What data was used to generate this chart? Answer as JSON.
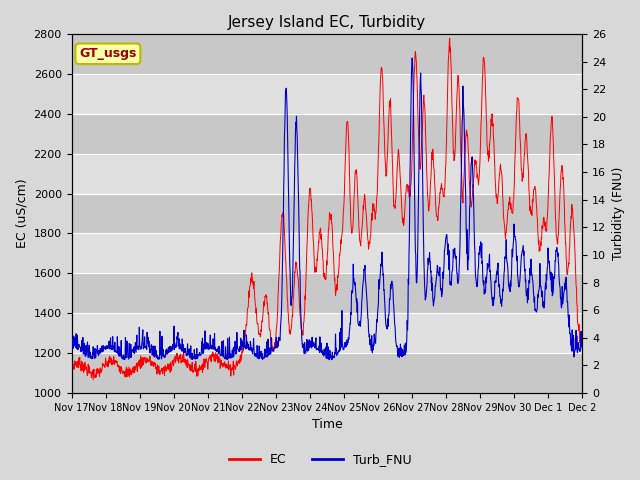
{
  "title": "Jersey Island EC, Turbidity",
  "xlabel": "Time",
  "ylabel_left": "EC (uS/cm)",
  "ylabel_right": "Turbidity (FNU)",
  "ylim_left": [
    1000,
    2800
  ],
  "ylim_right": [
    0,
    26
  ],
  "yticks_left": [
    1000,
    1200,
    1400,
    1600,
    1800,
    2000,
    2200,
    2400,
    2600,
    2800
  ],
  "yticks_right": [
    0,
    2,
    4,
    6,
    8,
    10,
    12,
    14,
    16,
    18,
    20,
    22,
    24,
    26
  ],
  "background_color": "#d8d8d8",
  "plot_bg_color": "#e0e0e0",
  "band_colors": [
    "#c8c8c8",
    "#e0e0e0"
  ],
  "grid_color": "#ffffff",
  "ec_color": "#ff0000",
  "turb_color": "#0000cc",
  "annotation_text": "GT_usgs",
  "annotation_bg": "#ffffaa",
  "annotation_border": "#bbbb00",
  "legend_labels": [
    "EC",
    "Turb_FNU"
  ],
  "title_fontsize": 11,
  "axis_fontsize": 9,
  "tick_fontsize": 8
}
